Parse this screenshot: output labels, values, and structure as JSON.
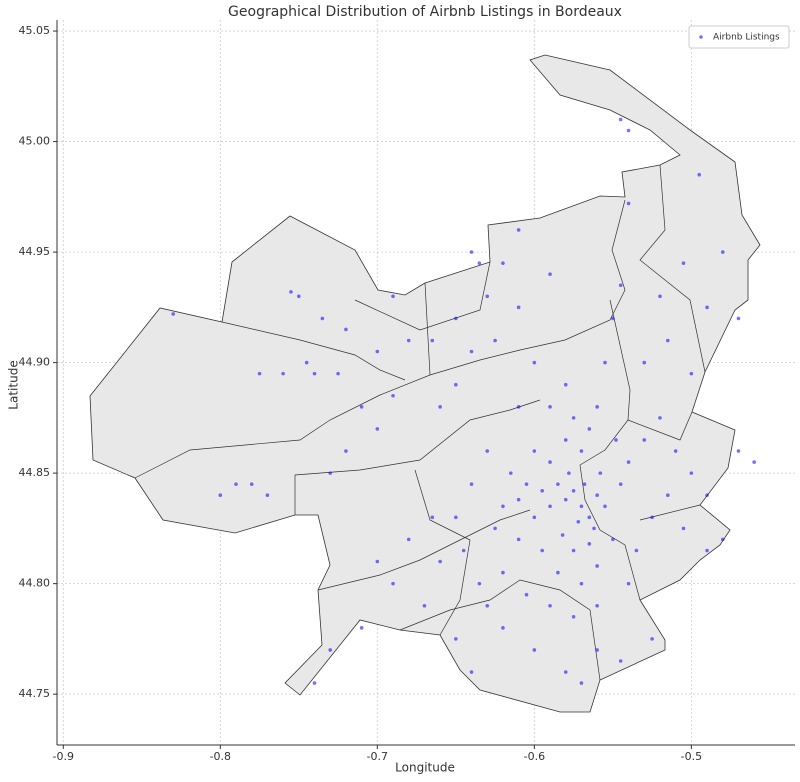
{
  "chart_data": {
    "type": "scatter",
    "title": "Geographical Distribution of Airbnb Listings in Bordeaux",
    "x_label": "Longitude",
    "y_label": "Latitude",
    "xlim": [
      -0.904,
      -0.434
    ],
    "ylim": [
      44.727,
      45.055
    ],
    "xticks": [
      -0.9,
      -0.8,
      -0.7,
      -0.6,
      -0.5
    ],
    "yticks": [
      44.75,
      {
        "value": 44.8,
        "label": "44.80"
      },
      44.85,
      {
        "value": 44.9,
        "label": "44.90"
      },
      44.95,
      {
        "value": 45,
        "label": "45.00"
      },
      45.05
    ],
    "grid": true,
    "legend": "upper right",
    "series": [
      {
        "name": "Airbnb Listings",
        "color": "#0000ff",
        "x": [
          -0.57,
          -0.565,
          -0.575,
          -0.58,
          -0.568,
          -0.562,
          -0.572,
          -0.585,
          -0.578,
          -0.56,
          -0.59,
          -0.595,
          -0.6,
          -0.605,
          -0.61,
          -0.582,
          -0.575,
          -0.565,
          -0.555,
          -0.558,
          -0.57,
          -0.58,
          -0.575,
          -0.565,
          -0.59,
          -0.6,
          -0.615,
          -0.62,
          -0.625,
          -0.61,
          -0.595,
          -0.585,
          -0.57,
          -0.56,
          -0.55,
          -0.545,
          -0.54,
          -0.548,
          -0.63,
          -0.64,
          -0.65,
          -0.645,
          -0.635,
          -0.62,
          -0.605,
          -0.59,
          -0.575,
          -0.56,
          -0.54,
          -0.535,
          -0.53,
          -0.52,
          -0.51,
          -0.5,
          -0.49,
          -0.515,
          -0.525,
          -0.505,
          -0.49,
          -0.48,
          -0.47,
          -0.46,
          -0.53,
          -0.515,
          -0.5,
          -0.52,
          -0.505,
          -0.49,
          -0.47,
          -0.48,
          -0.54,
          -0.495,
          -0.545,
          -0.54,
          -0.6,
          -0.62,
          -0.64,
          -0.65,
          -0.58,
          -0.56,
          -0.545,
          -0.525,
          -0.57,
          -0.63,
          -0.67,
          -0.69,
          -0.71,
          -0.7,
          -0.66,
          -0.665,
          -0.68,
          -0.74,
          -0.73,
          -0.7,
          -0.71,
          -0.69,
          -0.66,
          -0.65,
          -0.72,
          -0.73,
          -0.74,
          -0.76,
          -0.775,
          -0.745,
          -0.725,
          -0.735,
          -0.75,
          -0.755,
          -0.72,
          -0.7,
          -0.68,
          -0.665,
          -0.64,
          -0.625,
          -0.65,
          -0.63,
          -0.61,
          -0.69,
          -0.78,
          -0.79,
          -0.8,
          -0.77,
          -0.83,
          -0.635,
          -0.64,
          -0.62,
          -0.61,
          -0.59,
          -0.6,
          -0.59,
          -0.61,
          -0.58,
          -0.56,
          -0.555,
          -0.55,
          -0.545
        ],
        "values": [
          44.835,
          44.83,
          44.842,
          44.838,
          44.845,
          44.825,
          44.828,
          44.845,
          44.85,
          44.84,
          44.835,
          44.842,
          44.83,
          44.845,
          44.838,
          44.822,
          44.815,
          44.818,
          44.835,
          44.85,
          44.86,
          44.865,
          44.875,
          44.87,
          44.855,
          44.86,
          44.85,
          44.835,
          44.825,
          44.82,
          44.815,
          44.805,
          44.8,
          44.808,
          44.82,
          44.845,
          44.855,
          44.865,
          44.86,
          44.845,
          44.83,
          44.815,
          44.8,
          44.805,
          44.795,
          44.79,
          44.785,
          44.79,
          44.8,
          44.815,
          44.865,
          44.875,
          44.86,
          44.85,
          44.84,
          44.84,
          44.83,
          44.825,
          44.815,
          44.82,
          44.86,
          44.855,
          44.9,
          44.91,
          44.895,
          44.93,
          44.945,
          44.925,
          44.92,
          44.95,
          44.972,
          44.985,
          45.01,
          45.005,
          44.77,
          44.78,
          44.76,
          44.775,
          44.76,
          44.77,
          44.765,
          44.775,
          44.755,
          44.79,
          44.79,
          44.8,
          44.78,
          44.81,
          44.81,
          44.83,
          44.82,
          44.755,
          44.77,
          44.87,
          44.88,
          44.885,
          44.88,
          44.89,
          44.86,
          44.85,
          44.895,
          44.895,
          44.895,
          44.9,
          44.895,
          44.92,
          44.93,
          44.932,
          44.915,
          44.905,
          44.91,
          44.91,
          44.905,
          44.91,
          44.92,
          44.93,
          44.925,
          44.93,
          44.845,
          44.845,
          44.84,
          44.84,
          44.922,
          44.945,
          44.95,
          44.945,
          44.96,
          44.94,
          44.9,
          44.88,
          44.88,
          44.89,
          44.88,
          44.9,
          44.92,
          44.935
        ]
      }
    ]
  }
}
